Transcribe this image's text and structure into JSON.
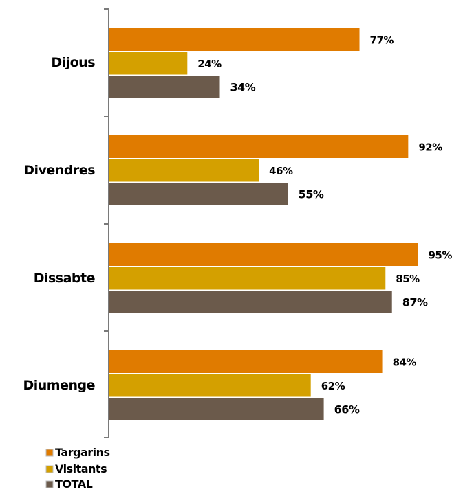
{
  "chart_data": {
    "type": "bar",
    "orientation": "horizontal",
    "categories": [
      "Dijous",
      "Divendres",
      "Dissabte",
      "Diumenge"
    ],
    "series": [
      {
        "name": "Targarins",
        "values": [
          77,
          92,
          95,
          84
        ],
        "labels": [
          "77%",
          "92%",
          "95%",
          "84%"
        ],
        "color": "#E07B00"
      },
      {
        "name": "Visitants",
        "values": [
          24,
          46,
          85,
          62
        ],
        "labels": [
          "24%",
          "46%",
          "85%",
          "62%"
        ],
        "color": "#D4A000"
      },
      {
        "name": "TOTAL",
        "values": [
          34,
          55,
          87,
          66
        ],
        "labels": [
          "34%",
          "55%",
          "87%",
          "66%"
        ],
        "color": "#6B5A4B"
      }
    ],
    "xlim": [
      0,
      100
    ],
    "grid": false,
    "legend_position": "bottom-left",
    "title": "",
    "xlabel": "",
    "ylabel": ""
  }
}
